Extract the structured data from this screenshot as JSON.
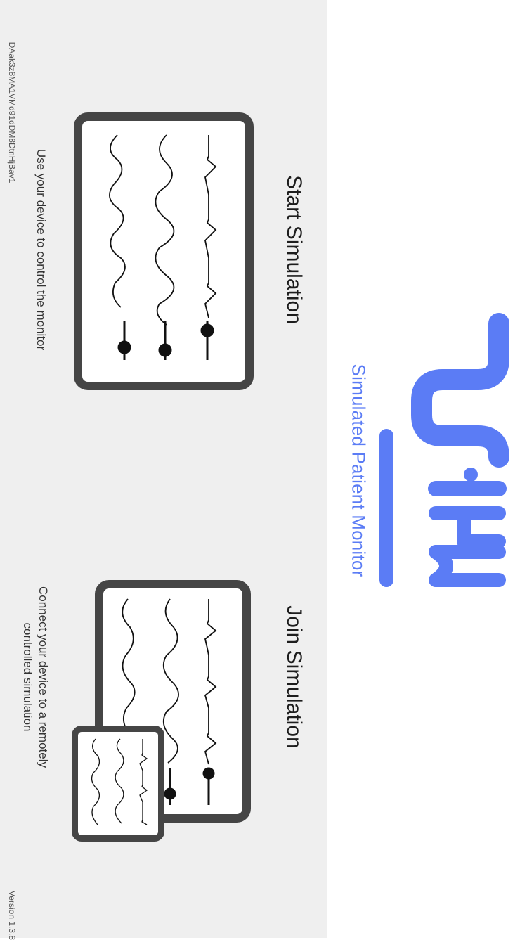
{
  "brand": {
    "logo_text": "Simpl",
    "subtitle": "Simulated Patient Monitor",
    "accent_color": "#5b7cf5"
  },
  "start": {
    "title": "Start Simulation",
    "description": "Use your device to control the monitor",
    "icon": "patient-monitor-icon"
  },
  "join": {
    "title": "Join Simulation",
    "description_line1": "Connect your device to a remotely",
    "description_line2": "controlled simulation",
    "icon": "linked-monitors-icon"
  },
  "footer": {
    "device_id": "DAak3z8MA1VMd91dDM8DtnHjBav1",
    "version": "Version 1.3.8"
  }
}
